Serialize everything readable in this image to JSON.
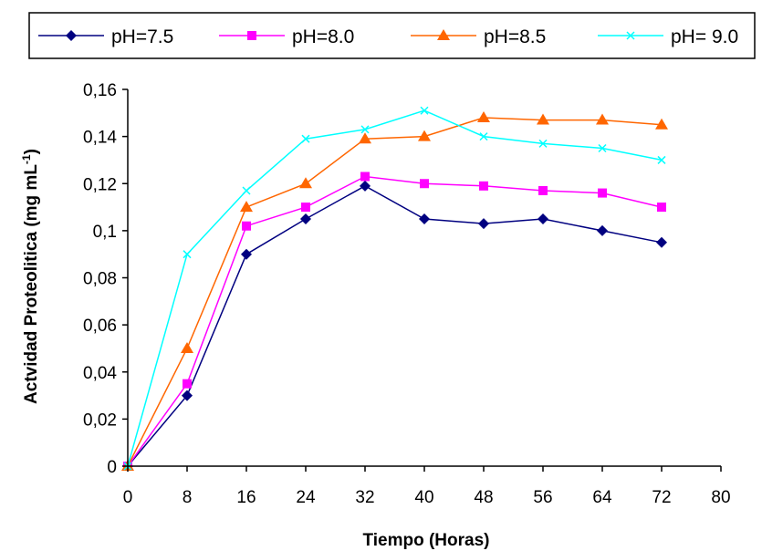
{
  "chart_data": {
    "type": "line",
    "xlabel": "Tiempo (Horas)",
    "ylabel": "Actvidad Proteolitica (mg mL",
    "ylabel_sup": "-1",
    "ylabel_close": ")",
    "xlim": [
      0,
      80
    ],
    "ylim": [
      0,
      0.16
    ],
    "x_ticks": [
      "0",
      "8",
      "16",
      "24",
      "32",
      "40",
      "48",
      "56",
      "64",
      "72",
      "80"
    ],
    "y_ticks": [
      "0",
      "0,02",
      "0,04",
      "0,06",
      "0,08",
      "0,1",
      "0,12",
      "0,14",
      "0,16"
    ],
    "grid": false,
    "legend_position": "top",
    "x": [
      0,
      8,
      16,
      24,
      32,
      40,
      48,
      56,
      64,
      72
    ],
    "series": [
      {
        "name": "pH=7.5",
        "color": "#000080",
        "marker": "diamond",
        "values": [
          0,
          0.03,
          0.09,
          0.105,
          0.119,
          0.105,
          0.103,
          0.105,
          0.1,
          0.095
        ]
      },
      {
        "name": "pH=8.0",
        "color": "#FF00FF",
        "marker": "square",
        "values": [
          0,
          0.035,
          0.102,
          0.11,
          0.123,
          0.12,
          0.119,
          0.117,
          0.116,
          0.11
        ]
      },
      {
        "name": "pH=8.5",
        "color": "#FF6600",
        "marker": "triangle",
        "values": [
          0,
          0.05,
          0.11,
          0.12,
          0.139,
          0.14,
          0.148,
          0.147,
          0.147,
          0.145
        ]
      },
      {
        "name": "pH= 9.0",
        "color": "#00FFFF",
        "marker": "x",
        "values": [
          0,
          0.09,
          0.117,
          0.139,
          0.143,
          0.151,
          0.14,
          0.137,
          0.135,
          0.13
        ]
      }
    ]
  }
}
